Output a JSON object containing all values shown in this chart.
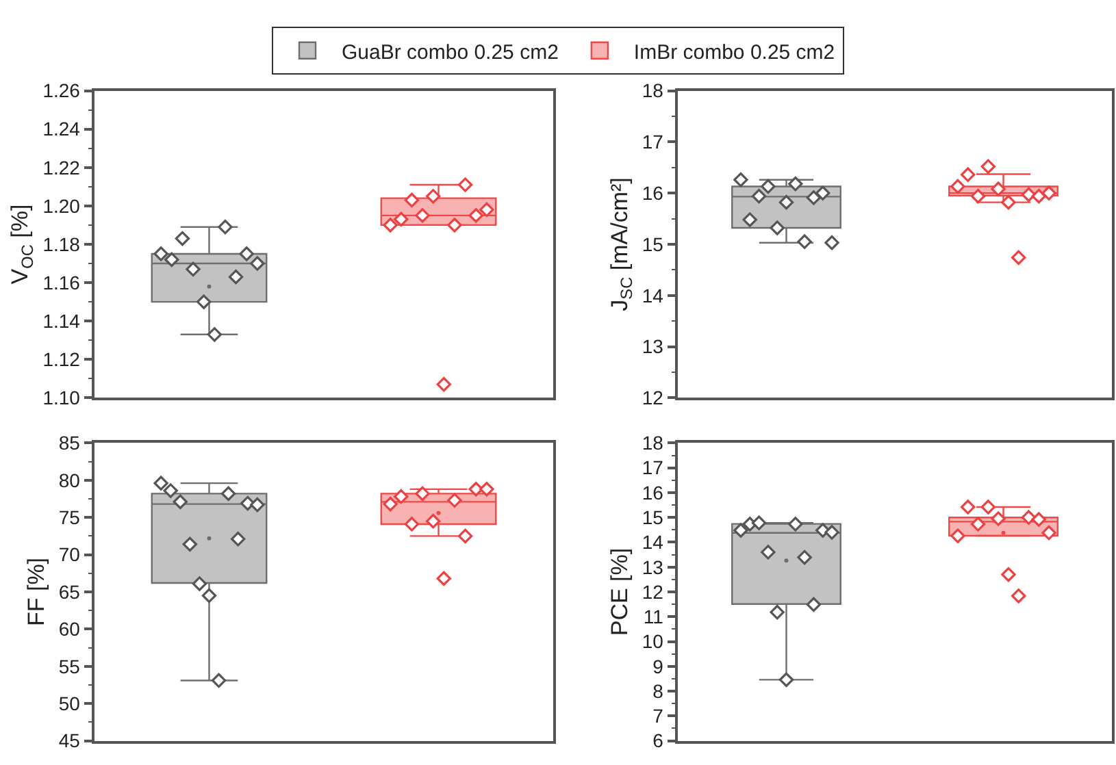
{
  "chart_data": [
    {
      "type": "box",
      "ylabel": "V$_{OC}$ [%]",
      "categories": [
        null
      ],
      "ylim": [
        1.1,
        1.26
      ],
      "yticks": [
        {
          "value": 1.1,
          "label": "1.10"
        },
        {
          "value": 1.12,
          "label": "1.12"
        },
        {
          "value": 1.14,
          "label": "1.14"
        },
        {
          "value": 1.16,
          "label": "1.16"
        },
        {
          "value": 1.18,
          "label": "1.18"
        },
        {
          "value": 1.2,
          "label": "1.20"
        },
        {
          "value": 1.22,
          "label": "1.22"
        },
        {
          "value": 1.24,
          "label": "1.24"
        },
        {
          "value": 1.26,
          "label": "1.26"
        }
      ],
      "tick_labels": "y",
      "marker": "diamond",
      "legend": "top",
      "series": [
        {
          "name": "GuaBr combo 0.25 cm2",
          "color": "#6e6e6e",
          "boxes": [
            {
              "low": 1.133,
              "q1": 1.15,
              "median": 1.17,
              "q3": 1.175,
              "high": 1.189,
              "mean": 1.158
            }
          ]
        },
        {
          "name": "ImBr combo 0.25 cm2",
          "color": "#f04848",
          "boxes": [
            {
              "low": 1.19,
              "q1": 1.19,
              "median": 1.195,
              "q3": 1.204,
              "high": 1.211
            }
          ]
        },
        {
          "type": "scatter",
          "color": "#555555",
          "x": [
            null,
            null,
            null,
            null,
            null,
            null,
            null,
            null,
            null,
            null
          ],
          "values": [
            1.175,
            1.172,
            1.183,
            1.167,
            1.15,
            1.133,
            1.189,
            1.163,
            1.175,
            1.17
          ]
        },
        {
          "type": "scatter",
          "color": "#ee4040",
          "x": [
            null,
            null,
            null,
            null,
            null,
            null,
            null,
            null,
            null,
            null
          ],
          "values": [
            1.19,
            1.193,
            1.203,
            1.195,
            1.205,
            1.107,
            1.19,
            1.211,
            1.195,
            1.198
          ]
        }
      ]
    },
    {
      "type": "box",
      "ylabel": "J$_{SC}$ [mA/cm²]",
      "categories": [
        null
      ],
      "ylim": [
        12,
        18
      ],
      "yticks": [
        12,
        13,
        14,
        15,
        16,
        17,
        18
      ],
      "tick_labels": "y",
      "marker": "diamond",
      "series": [
        {
          "color": "#6e6e6e",
          "boxes": [
            {
              "low": 15.03,
              "q1": 15.32,
              "median": 15.93,
              "q3": 16.13,
              "high": 16.26
            }
          ]
        },
        {
          "color": "#f04848",
          "boxes": [
            {
              "low": 15.82,
              "q1": 15.95,
              "median": 16.0,
              "q3": 16.13,
              "high": 16.37
            }
          ]
        },
        {
          "type": "scatter",
          "color": "#555555",
          "x": [
            null,
            null,
            null,
            null,
            null,
            null,
            null,
            null,
            null,
            null,
            null
          ],
          "values": [
            16.26,
            15.48,
            15.94,
            16.13,
            15.32,
            15.82,
            16.18,
            15.05,
            15.91,
            16.0,
            15.03
          ]
        },
        {
          "type": "scatter",
          "color": "#ee4040",
          "x": [
            null,
            null,
            null,
            null,
            null,
            null,
            null,
            null,
            null,
            null
          ],
          "values": [
            16.13,
            16.36,
            15.94,
            16.52,
            16.08,
            15.82,
            14.74,
            15.97,
            15.94,
            16.0
          ]
        }
      ]
    },
    {
      "type": "box",
      "ylabel": "FF [%]",
      "categories": [
        null
      ],
      "ylim": [
        45,
        85
      ],
      "yticks": [
        45,
        50,
        55,
        60,
        65,
        70,
        75,
        80,
        85
      ],
      "tick_labels": "y",
      "marker": "diamond",
      "series": [
        {
          "color": "#6e6e6e",
          "boxes": [
            {
              "low": 53.1,
              "q1": 66.2,
              "median": 76.8,
              "q3": 78.2,
              "high": 79.6,
              "mean": 72.2
            }
          ]
        },
        {
          "color": "#f04848",
          "boxes": [
            {
              "low": 72.5,
              "q1": 74.1,
              "median": 77.1,
              "q3": 78.2,
              "high": 78.8,
              "mean": 75.6
            }
          ]
        },
        {
          "type": "scatter",
          "color": "#555555",
          "x": [
            null,
            null,
            null,
            null,
            null,
            null,
            null,
            null,
            null,
            null,
            null
          ],
          "values": [
            79.6,
            78.6,
            77.1,
            71.4,
            66.1,
            64.5,
            53.1,
            78.2,
            72.1,
            76.9,
            76.7
          ]
        },
        {
          "type": "scatter",
          "color": "#ee4040",
          "x": [
            null,
            null,
            null,
            null,
            null,
            null,
            null,
            null,
            null,
            null
          ],
          "values": [
            76.8,
            77.8,
            74.1,
            78.2,
            74.5,
            66.8,
            77.3,
            72.5,
            78.8,
            78.8
          ]
        }
      ]
    },
    {
      "type": "box",
      "ylabel": "PCE [%]",
      "categories": [
        null
      ],
      "ylim": [
        6,
        18
      ],
      "yticks": [
        6,
        7,
        8,
        9,
        10,
        11,
        12,
        13,
        14,
        15,
        16,
        17,
        18
      ],
      "tick_labels": "y",
      "marker": "diamond",
      "series": [
        {
          "color": "#6e6e6e",
          "boxes": [
            {
              "low": 8.46,
              "q1": 11.51,
              "median": 14.38,
              "q3": 14.74,
              "high": 14.78,
              "mean": 13.26
            }
          ]
        },
        {
          "color": "#f04848",
          "boxes": [
            {
              "low": 14.26,
              "q1": 14.26,
              "median": 14.83,
              "q3": 15.0,
              "high": 15.42,
              "mean": 14.38
            }
          ]
        },
        {
          "type": "scatter",
          "color": "#555555",
          "x": [
            null,
            null,
            null,
            null,
            null,
            null,
            null,
            null,
            null,
            null,
            null
          ],
          "values": [
            14.48,
            14.73,
            14.78,
            13.6,
            11.18,
            8.46,
            14.73,
            13.39,
            11.49,
            14.48,
            14.4
          ]
        },
        {
          "type": "scatter",
          "color": "#ee4040",
          "x": [
            null,
            null,
            null,
            null,
            null,
            null,
            null,
            null,
            null,
            null
          ],
          "values": [
            14.26,
            15.42,
            14.73,
            15.42,
            14.95,
            12.7,
            11.84,
            15.0,
            14.92,
            14.38
          ]
        }
      ]
    }
  ]
}
